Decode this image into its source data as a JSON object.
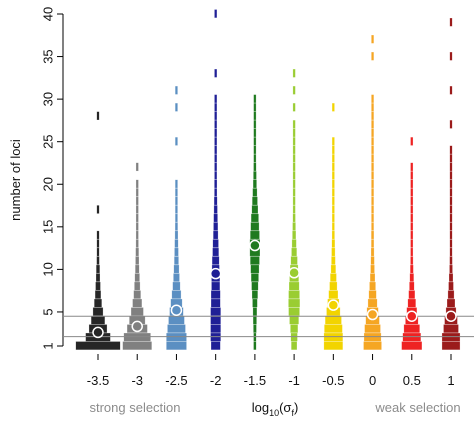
{
  "chart_data": {
    "type": "beanplot",
    "y_label": "number of loci",
    "x_label_parts": [
      "log",
      "10",
      "(σ",
      "f",
      ")"
    ],
    "annotations": {
      "left": "strong selection",
      "right": "weak selection"
    },
    "xlim": [
      -3.5,
      1
    ],
    "xticks": [
      -3.5,
      -3,
      -2.5,
      -2,
      -1.5,
      -1,
      -0.5,
      0,
      0.5,
      1
    ],
    "ylim": [
      1,
      40
    ],
    "yticks": [
      1,
      5,
      10,
      15,
      20,
      25,
      30,
      35,
      40
    ],
    "hlines": [
      2.1,
      4.5
    ],
    "groups": [
      {
        "x": -3.5,
        "color": "#262626",
        "mean": 2.6,
        "levels": [
          1,
          2,
          3,
          4,
          5,
          6,
          7,
          8,
          9,
          10,
          11,
          12,
          13,
          14,
          17,
          28
        ],
        "density": [
          1,
          0.55,
          0.4,
          0.3,
          0.22,
          0.16,
          0.12,
          0.1,
          0.08,
          0.07,
          0.05,
          0.04,
          0.03,
          0.03,
          0.02,
          0.02
        ]
      },
      {
        "x": -3,
        "color": "#808080",
        "mean": 3.3,
        "levels": [
          1,
          2,
          3,
          4,
          5,
          6,
          7,
          8,
          9,
          10,
          11,
          12,
          13,
          14,
          15,
          16,
          17,
          18,
          19,
          20,
          22
        ],
        "density": [
          0.65,
          0.6,
          0.45,
          0.35,
          0.27,
          0.2,
          0.15,
          0.12,
          0.1,
          0.08,
          0.07,
          0.06,
          0.05,
          0.04,
          0.04,
          0.03,
          0.03,
          0.03,
          0.02,
          0.02,
          0.02
        ]
      },
      {
        "x": -2.5,
        "color": "#5b8fc2",
        "mean": 5.2,
        "levels": [
          1,
          2,
          3,
          4,
          5,
          6,
          7,
          8,
          9,
          10,
          11,
          12,
          13,
          14,
          15,
          16,
          17,
          18,
          19,
          20,
          25,
          29,
          31
        ],
        "density": [
          0.45,
          0.45,
          0.4,
          0.35,
          0.3,
          0.25,
          0.2,
          0.16,
          0.13,
          0.11,
          0.09,
          0.08,
          0.07,
          0.06,
          0.05,
          0.04,
          0.04,
          0.03,
          0.03,
          0.02,
          0.02,
          0.02,
          0.02
        ]
      },
      {
        "x": -2,
        "color": "#1f1f96",
        "mean": 9.5,
        "levels": [
          1,
          2,
          3,
          4,
          5,
          6,
          7,
          8,
          9,
          10,
          11,
          12,
          13,
          14,
          15,
          16,
          17,
          18,
          19,
          20,
          21,
          22,
          23,
          24,
          25,
          26,
          27,
          28,
          29,
          30,
          33,
          40
        ],
        "density": [
          0.2,
          0.22,
          0.22,
          0.22,
          0.22,
          0.2,
          0.2,
          0.18,
          0.18,
          0.16,
          0.15,
          0.13,
          0.12,
          0.1,
          0.09,
          0.08,
          0.07,
          0.06,
          0.05,
          0.05,
          0.04,
          0.04,
          0.03,
          0.03,
          0.03,
          0.03,
          0.02,
          0.02,
          0.02,
          0.02,
          0.02,
          0.02
        ]
      },
      {
        "x": -1.5,
        "color": "#1f7a1f",
        "mean": 12.8,
        "levels": [
          1,
          2,
          3,
          4,
          5,
          6,
          7,
          8,
          9,
          10,
          11,
          12,
          13,
          14,
          15,
          16,
          17,
          18,
          19,
          20,
          21,
          22,
          23,
          24,
          25,
          26,
          27,
          28,
          29,
          30
        ],
        "density": [
          0.05,
          0.05,
          0.06,
          0.07,
          0.08,
          0.1,
          0.12,
          0.14,
          0.16,
          0.18,
          0.2,
          0.22,
          0.22,
          0.2,
          0.18,
          0.16,
          0.13,
          0.11,
          0.09,
          0.07,
          0.06,
          0.05,
          0.04,
          0.04,
          0.03,
          0.03,
          0.02,
          0.02,
          0.02,
          0.02
        ]
      },
      {
        "x": -1,
        "color": "#9acd32",
        "mean": 9.6,
        "levels": [
          1,
          2,
          3,
          4,
          5,
          6,
          7,
          8,
          9,
          10,
          11,
          12,
          13,
          14,
          15,
          16,
          17,
          18,
          19,
          20,
          21,
          22,
          23,
          24,
          25,
          26,
          27,
          29,
          31,
          33
        ],
        "density": [
          0.12,
          0.14,
          0.16,
          0.2,
          0.24,
          0.25,
          0.24,
          0.22,
          0.2,
          0.17,
          0.14,
          0.11,
          0.09,
          0.07,
          0.06,
          0.05,
          0.04,
          0.04,
          0.03,
          0.03,
          0.03,
          0.02,
          0.02,
          0.02,
          0.02,
          0.02,
          0.02,
          0.02,
          0.02,
          0.02
        ]
      },
      {
        "x": -0.5,
        "color": "#f2d400",
        "mean": 5.8,
        "levels": [
          1,
          2,
          3,
          4,
          5,
          6,
          7,
          8,
          9,
          10,
          11,
          12,
          13,
          14,
          15,
          16,
          17,
          18,
          19,
          20,
          21,
          22,
          23,
          24,
          25,
          29
        ],
        "density": [
          0.42,
          0.42,
          0.4,
          0.36,
          0.3,
          0.25,
          0.2,
          0.16,
          0.13,
          0.1,
          0.08,
          0.07,
          0.06,
          0.05,
          0.04,
          0.04,
          0.03,
          0.03,
          0.03,
          0.02,
          0.02,
          0.02,
          0.02,
          0.02,
          0.02,
          0.02
        ]
      },
      {
        "x": 0,
        "color": "#f5a623",
        "mean": 4.7,
        "levels": [
          1,
          2,
          3,
          4,
          5,
          6,
          7,
          8,
          9,
          10,
          11,
          12,
          13,
          14,
          15,
          16,
          17,
          18,
          19,
          20,
          21,
          22,
          23,
          24,
          25,
          26,
          27,
          28,
          29,
          30,
          35,
          37
        ],
        "density": [
          0.4,
          0.38,
          0.35,
          0.3,
          0.25,
          0.2,
          0.16,
          0.13,
          0.1,
          0.08,
          0.07,
          0.06,
          0.05,
          0.05,
          0.04,
          0.04,
          0.03,
          0.03,
          0.03,
          0.03,
          0.02,
          0.02,
          0.02,
          0.02,
          0.02,
          0.02,
          0.02,
          0.02,
          0.02,
          0.02,
          0.02,
          0.02
        ]
      },
      {
        "x": 0.5,
        "color": "#ee2222",
        "mean": 4.5,
        "levels": [
          1,
          2,
          3,
          4,
          5,
          6,
          7,
          8,
          9,
          10,
          11,
          12,
          13,
          14,
          15,
          16,
          17,
          18,
          19,
          20,
          21,
          22,
          25
        ],
        "density": [
          0.45,
          0.4,
          0.35,
          0.28,
          0.22,
          0.17,
          0.13,
          0.1,
          0.08,
          0.06,
          0.05,
          0.04,
          0.04,
          0.03,
          0.03,
          0.03,
          0.02,
          0.02,
          0.02,
          0.02,
          0.02,
          0.02,
          0.02
        ]
      },
      {
        "x": 1,
        "color": "#9b1b1b",
        "mean": 4.5,
        "levels": [
          1,
          2,
          3,
          4,
          5,
          6,
          7,
          8,
          9,
          10,
          11,
          12,
          13,
          14,
          15,
          16,
          17,
          18,
          19,
          20,
          21,
          22,
          23,
          24,
          27,
          31,
          35,
          39
        ],
        "density": [
          0.4,
          0.4,
          0.33,
          0.28,
          0.22,
          0.17,
          0.13,
          0.1,
          0.08,
          0.06,
          0.05,
          0.04,
          0.04,
          0.03,
          0.03,
          0.03,
          0.02,
          0.02,
          0.02,
          0.02,
          0.02,
          0.02,
          0.02,
          0.02,
          0.02,
          0.02,
          0.02,
          0.02
        ]
      }
    ]
  }
}
